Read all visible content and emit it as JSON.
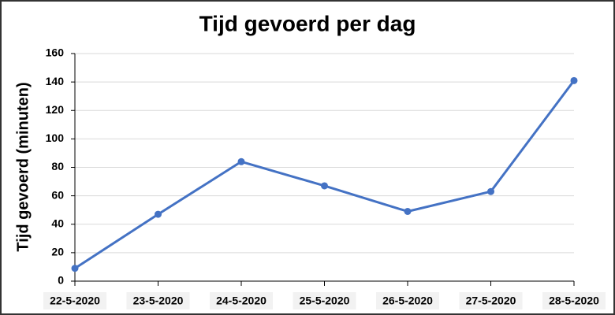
{
  "chart_data": {
    "type": "line",
    "title": "Tijd gevoerd per dag",
    "y_label": "Tijd gevoerd (minuten)",
    "categories": [
      "22-5-2020",
      "23-5-2020",
      "24-5-2020",
      "25-5-2020",
      "26-5-2020",
      "27-5-2020",
      "28-5-2020"
    ],
    "values": [
      9,
      47,
      84,
      67,
      49,
      63,
      141
    ],
    "color": "#4472c4",
    "ylim": [
      0,
      160
    ],
    "yticks": [
      0,
      20,
      40,
      60,
      80,
      100,
      120,
      140,
      160
    ],
    "grid": true
  }
}
